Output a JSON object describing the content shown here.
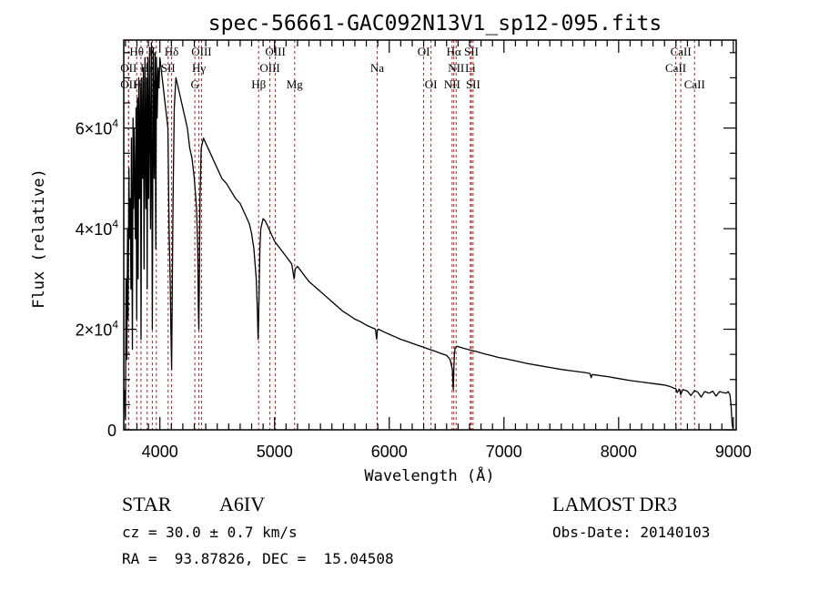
{
  "chart_data": {
    "type": "line",
    "title": "spec-56661-GAC092N13V1_sp12-095.fits",
    "xlabel": "Wavelength (Å)",
    "ylabel": "Flux (relative)",
    "xlim": [
      3685,
      9025
    ],
    "ylim": [
      0,
      77500
    ],
    "grid": false,
    "x_ticks": [
      {
        "value": 4000,
        "label": "4000"
      },
      {
        "value": 5000,
        "label": "5000"
      },
      {
        "value": 6000,
        "label": "6000"
      },
      {
        "value": 7000,
        "label": "7000"
      },
      {
        "value": 8000,
        "label": "8000"
      },
      {
        "value": 9000,
        "label": "9000"
      }
    ],
    "y_ticks": [
      {
        "value": 0,
        "label": "0",
        "mantissa": "0",
        "exponent": ""
      },
      {
        "value": 20000,
        "label": "2×10^4",
        "mantissa": "2×10",
        "exponent": "4"
      },
      {
        "value": 40000,
        "label": "4×10^4",
        "mantissa": "4×10",
        "exponent": "4"
      },
      {
        "value": 60000,
        "label": "6×10^4",
        "mantissa": "6×10",
        "exponent": "4"
      }
    ],
    "series": [
      {
        "name": "spectrum",
        "color": "#000000",
        "x": [
          3690,
          3700,
          3705,
          3712,
          3718,
          3722,
          3730,
          3735,
          3742,
          3748,
          3752,
          3760,
          3766,
          3770,
          3775,
          3780,
          3786,
          3792,
          3798,
          3804,
          3810,
          3816,
          3822,
          3830,
          3836,
          3842,
          3850,
          3856,
          3862,
          3870,
          3878,
          3884,
          3889,
          3895,
          3902,
          3910,
          3918,
          3926,
          3934,
          3942,
          3950,
          3958,
          3964,
          3970,
          3976,
          3984,
          3992,
          4000,
          4010,
          4020,
          4030,
          4040,
          4050,
          4060,
          4070,
          4080,
          4090,
          4096,
          4102,
          4108,
          4115,
          4125,
          4140,
          4160,
          4180,
          4200,
          4220,
          4240,
          4260,
          4280,
          4300,
          4320,
          4330,
          4336,
          4340,
          4344,
          4350,
          4360,
          4380,
          4400,
          4420,
          4440,
          4460,
          4480,
          4500,
          4540,
          4580,
          4620,
          4660,
          4700,
          4740,
          4780,
          4800,
          4820,
          4840,
          4850,
          4856,
          4861,
          4866,
          4872,
          4880,
          4900,
          4920,
          4940,
          4960,
          4980,
          5000,
          5050,
          5100,
          5150,
          5170,
          5180,
          5200,
          5250,
          5300,
          5350,
          5400,
          5450,
          5500,
          5550,
          5600,
          5650,
          5700,
          5750,
          5800,
          5850,
          5880,
          5890,
          5896,
          5905,
          5950,
          6000,
          6050,
          6100,
          6150,
          6200,
          6250,
          6300,
          6350,
          6400,
          6450,
          6500,
          6530,
          6550,
          6558,
          6563,
          6568,
          6575,
          6590,
          6620,
          6650,
          6700,
          6750,
          6800,
          6850,
          6900,
          6950,
          7000,
          7100,
          7200,
          7300,
          7400,
          7500,
          7600,
          7700,
          7750,
          7760,
          7770,
          7800,
          7900,
          8000,
          8100,
          8200,
          8300,
          8400,
          8450,
          8480,
          8498,
          8510,
          8530,
          8542,
          8560,
          8600,
          8630,
          8662,
          8690,
          8720,
          8750,
          8790,
          8820,
          8850,
          8880,
          8910,
          8940,
          8955,
          8962,
          8970,
          8980,
          8990,
          9000
        ],
        "y": [
          8000,
          2000,
          30000,
          14000,
          40000,
          22000,
          52000,
          38000,
          46000,
          28000,
          58000,
          16000,
          62000,
          44000,
          60000,
          50000,
          38000,
          64000,
          22000,
          66000,
          30000,
          70000,
          46000,
          68000,
          18000,
          70000,
          50000,
          72000,
          32000,
          74000,
          44000,
          70000,
          28000,
          74000,
          46000,
          76000,
          40000,
          77000,
          20000,
          76000,
          50000,
          75000,
          36000,
          74000,
          62000,
          72000,
          68000,
          74000,
          72000,
          70000,
          68000,
          66000,
          64000,
          62000,
          60000,
          40000,
          30000,
          20000,
          12000,
          28000,
          46000,
          64000,
          70000,
          68000,
          66000,
          64000,
          62000,
          60000,
          56000,
          54000,
          50000,
          44000,
          36000,
          24000,
          20000,
          30000,
          46000,
          56000,
          58000,
          57000,
          56000,
          55000,
          54000,
          53000,
          52000,
          50000,
          49000,
          47500,
          46000,
          45000,
          43000,
          41000,
          39000,
          36000,
          30000,
          24000,
          18000,
          22000,
          28000,
          36000,
          40000,
          42000,
          41500,
          40500,
          39500,
          38500,
          37500,
          36000,
          34500,
          33000,
          30000,
          32000,
          32500,
          31000,
          29500,
          28500,
          27500,
          26500,
          25500,
          24500,
          23500,
          22800,
          22000,
          21500,
          20800,
          20300,
          20000,
          18000,
          19800,
          20000,
          19500,
          19000,
          18500,
          18000,
          17600,
          17200,
          16800,
          16400,
          16000,
          15600,
          15200,
          14800,
          14000,
          12000,
          8000,
          12000,
          15000,
          16400,
          16600,
          16400,
          16200,
          15900,
          15600,
          15300,
          15000,
          14700,
          14400,
          14200,
          13700,
          13200,
          12800,
          12400,
          12000,
          11700,
          11400,
          11200,
          10400,
          11000,
          10900,
          10600,
          10200,
          9800,
          9500,
          9200,
          8900,
          8600,
          8300,
          8200,
          7400,
          8100,
          7000,
          8000,
          7700,
          6800,
          7800,
          7500,
          6500,
          7600,
          7300,
          7700,
          6700,
          7600,
          7400,
          7300,
          7600,
          7300,
          7000,
          5000,
          1000,
          0
        ]
      }
    ],
    "spectral_lines": [
      {
        "label": "OII",
        "wavelength": 3727,
        "row": 2
      },
      {
        "label": "Hθ",
        "wavelength": 3798,
        "row": 0
      },
      {
        "label": "OII",
        "wavelength": 3727,
        "row": 1
      },
      {
        "label": "He",
        "wavelength": 3889,
        "row": 1
      },
      {
        "label": "Hη",
        "wavelength": 3835,
        "row": 2
      },
      {
        "label": "K",
        "wavelength": 3934,
        "row": 0
      },
      {
        "label": "H",
        "wavelength": 3969,
        "row": 2
      },
      {
        "label": "SII",
        "wavelength": 4072,
        "row": 1
      },
      {
        "label": "Hδ",
        "wavelength": 4102,
        "row": 0
      },
      {
        "label": "OIII",
        "wavelength": 4363,
        "row": 0
      },
      {
        "label": "Hγ",
        "wavelength": 4340,
        "row": 1
      },
      {
        "label": "G",
        "wavelength": 4305,
        "row": 2
      },
      {
        "label": "Hβ",
        "wavelength": 4861,
        "row": 2
      },
      {
        "label": "OIII",
        "wavelength": 4959,
        "row": 1
      },
      {
        "label": "OIII",
        "wavelength": 5007,
        "row": 0
      },
      {
        "label": "Mg",
        "wavelength": 5175,
        "row": 2
      },
      {
        "label": "Na",
        "wavelength": 5894,
        "row": 1
      },
      {
        "label": "OI",
        "wavelength": 6300,
        "row": 0
      },
      {
        "label": "OI",
        "wavelength": 6364,
        "row": 2
      },
      {
        "label": "NII",
        "wavelength": 6548,
        "row": 2
      },
      {
        "label": "Hα",
        "wavelength": 6563,
        "row": 0
      },
      {
        "label": "NII",
        "wavelength": 6583,
        "row": 1
      },
      {
        "label": "Li",
        "wavelength": 6707,
        "row": 1
      },
      {
        "label": "SII",
        "wavelength": 6716,
        "row": 0
      },
      {
        "label": "SII",
        "wavelength": 6731,
        "row": 2
      },
      {
        "label": "CaII",
        "wavelength": 8498,
        "row": 1
      },
      {
        "label": "CaII",
        "wavelength": 8542,
        "row": 0
      },
      {
        "label": "CaII",
        "wavelength": 8662,
        "row": 2
      }
    ],
    "line_marker_color": "#a52a2a"
  },
  "info": {
    "object_class": "STAR",
    "subclass": "A6IV",
    "redshift": "cz = 30.0 ± 0.7 km/s",
    "coords": "RA =  93.87826, DEC =  15.04508",
    "survey": "LAMOST DR3",
    "obs_date": "Obs-Date: 20140103"
  }
}
